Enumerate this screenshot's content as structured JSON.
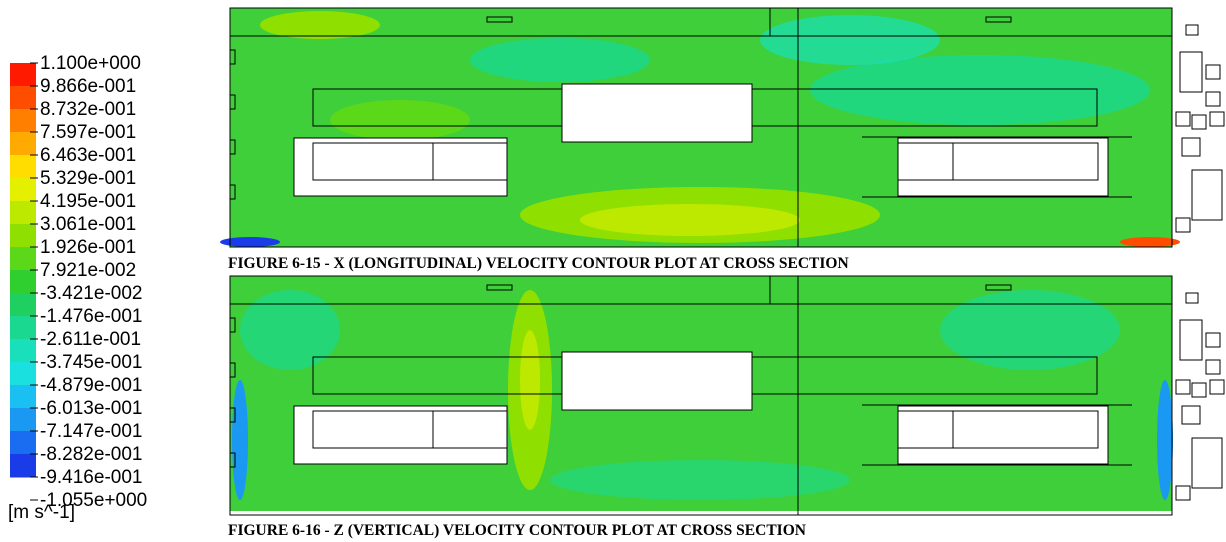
{
  "legend": {
    "labels": [
      "1.100e+000",
      "9.866e-001",
      "8.732e-001",
      "7.597e-001",
      "6.463e-001",
      "5.329e-001",
      "4.195e-001",
      "3.061e-001",
      "1.926e-001",
      "7.921e-002",
      "-3.421e-002",
      "-1.476e-001",
      "-2.611e-001",
      "-3.745e-001",
      "-4.879e-001",
      "-6.013e-001",
      "-7.147e-001",
      "-8.282e-001",
      "-9.416e-001",
      "-1.055e+000"
    ],
    "colors": [
      "#ff1a00",
      "#ff4d00",
      "#ff8000",
      "#ffaa00",
      "#ffdd00",
      "#e5f000",
      "#bde800",
      "#8fe000",
      "#5cd81a",
      "#2ecf2e",
      "#1fd060",
      "#1ad890",
      "#1adfbb",
      "#1ae0e0",
      "#1ac0f2",
      "#1a98f2",
      "#1a6cf0",
      "#1a3ce8"
    ],
    "unit": "[m s^-1]"
  },
  "figures": [
    {
      "caption": "FIGURE 6-15 - X (LONGITUDINAL) VELOCITY CONTOUR PLOT AT CROSS SECTION"
    },
    {
      "caption": "FIGURE 6-16 - Z (VERTICAL) VELOCITY CONTOUR PLOT AT CROSS SECTION"
    }
  ]
}
